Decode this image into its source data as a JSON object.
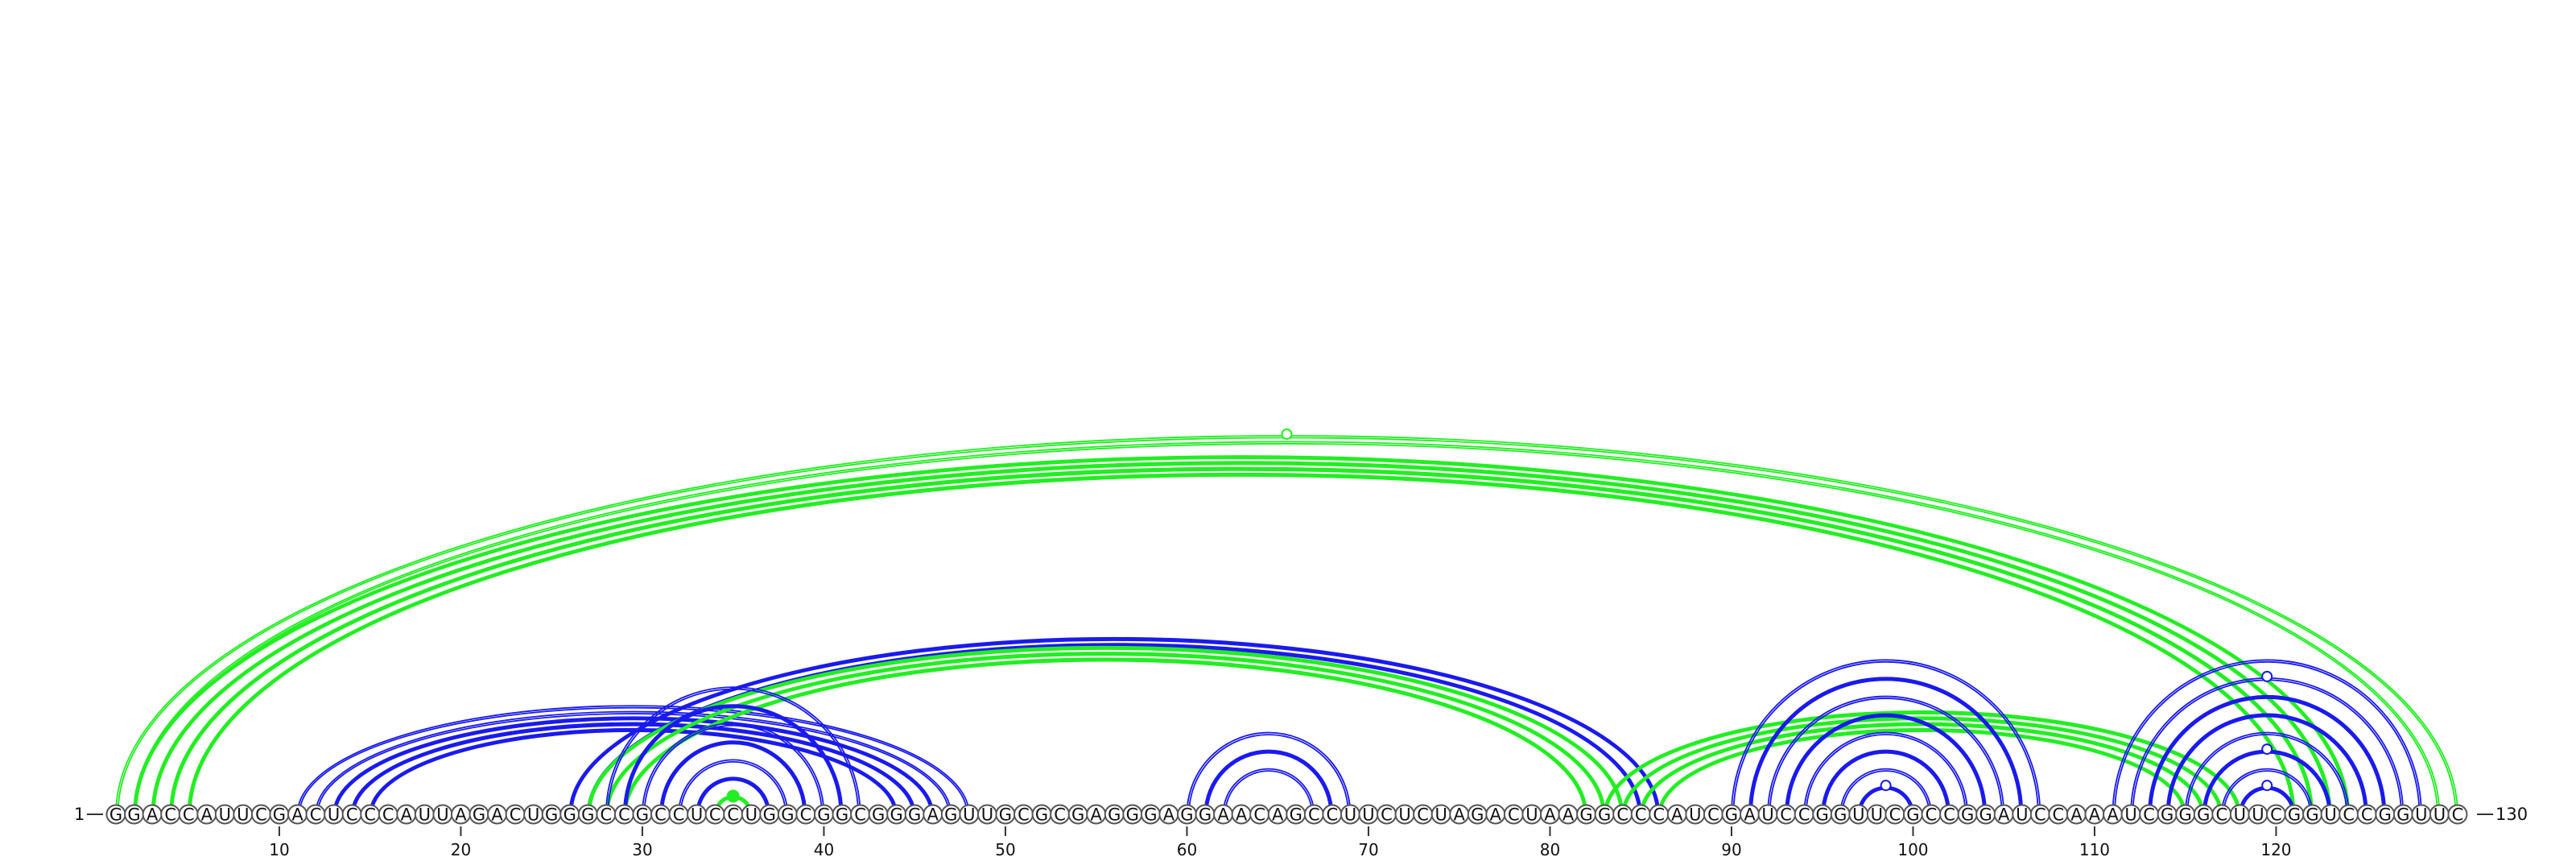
{
  "chart_data": {
    "type": "arc-diagram",
    "title": "",
    "sequence": "GGACCAUUCGACUCCCAUUAGACUGGGCCGCCUCCUGGCGGCGGGAGUUGCGCGAGGGAGGAACAGCCUUCUCUAGACUAAGGCCCAUCGAUCCGGUUCGCCGGAUCCAAAUCGGGCUUCGGUCCGGUUC",
    "start_label": "1",
    "end_label": "130",
    "ticks": [
      10,
      20,
      30,
      40,
      50,
      60,
      70,
      80,
      90,
      100,
      110,
      120
    ],
    "colors": {
      "blue": "#1a1aee",
      "green": "#22ee22"
    },
    "arcs": [
      {
        "i": 1,
        "j": 130,
        "color": "green",
        "weight": 1
      },
      {
        "i": 2,
        "j": 129,
        "color": "green",
        "weight": 1
      },
      {
        "i": 2,
        "j": 124,
        "color": "green",
        "weight": 2
      },
      {
        "i": 3,
        "j": 123,
        "color": "green",
        "weight": 2
      },
      {
        "i": 4,
        "j": 122,
        "color": "green",
        "weight": 2
      },
      {
        "i": 5,
        "j": 121,
        "color": "green",
        "weight": 2
      },
      {
        "i": 11,
        "j": 48,
        "color": "blue",
        "weight": 1
      },
      {
        "i": 12,
        "j": 47,
        "color": "blue",
        "weight": 1
      },
      {
        "i": 13,
        "j": 46,
        "color": "blue",
        "weight": 2
      },
      {
        "i": 14,
        "j": 45,
        "color": "blue",
        "weight": 2
      },
      {
        "i": 15,
        "j": 44,
        "color": "blue",
        "weight": 2
      },
      {
        "i": 26,
        "j": 86,
        "color": "blue",
        "weight": 2
      },
      {
        "i": 27,
        "j": 85,
        "color": "blue",
        "weight": 2
      },
      {
        "i": 27,
        "j": 84,
        "color": "green",
        "weight": 2
      },
      {
        "i": 28,
        "j": 83,
        "color": "green",
        "weight": 2
      },
      {
        "i": 29,
        "j": 82,
        "color": "green",
        "weight": 2
      },
      {
        "i": 28,
        "j": 42,
        "color": "blue",
        "weight": 1
      },
      {
        "i": 29,
        "j": 41,
        "color": "blue",
        "weight": 2
      },
      {
        "i": 30,
        "j": 40,
        "color": "blue",
        "weight": 1
      },
      {
        "i": 31,
        "j": 39,
        "color": "blue",
        "weight": 2
      },
      {
        "i": 32,
        "j": 38,
        "color": "blue",
        "weight": 1
      },
      {
        "i": 33,
        "j": 37,
        "color": "blue",
        "weight": 2
      },
      {
        "i": 34,
        "j": 36,
        "color": "green",
        "weight": 2
      },
      {
        "i": 60,
        "j": 69,
        "color": "blue",
        "weight": 1
      },
      {
        "i": 61,
        "j": 68,
        "color": "blue",
        "weight": 2
      },
      {
        "i": 62,
        "j": 67,
        "color": "blue",
        "weight": 1
      },
      {
        "i": 83,
        "j": 118,
        "color": "green",
        "weight": 2
      },
      {
        "i": 84,
        "j": 117,
        "color": "green",
        "weight": 2
      },
      {
        "i": 85,
        "j": 116,
        "color": "green",
        "weight": 2
      },
      {
        "i": 86,
        "j": 115,
        "color": "green",
        "weight": 2
      },
      {
        "i": 90,
        "j": 107,
        "color": "blue",
        "weight": 1
      },
      {
        "i": 91,
        "j": 106,
        "color": "blue",
        "weight": 2
      },
      {
        "i": 92,
        "j": 105,
        "color": "blue",
        "weight": 1
      },
      {
        "i": 93,
        "j": 104,
        "color": "blue",
        "weight": 2
      },
      {
        "i": 94,
        "j": 103,
        "color": "blue",
        "weight": 1
      },
      {
        "i": 95,
        "j": 102,
        "color": "blue",
        "weight": 2
      },
      {
        "i": 96,
        "j": 101,
        "color": "blue",
        "weight": 1
      },
      {
        "i": 97,
        "j": 100,
        "color": "blue",
        "weight": 2
      },
      {
        "i": 111,
        "j": 128,
        "color": "blue",
        "weight": 1
      },
      {
        "i": 112,
        "j": 127,
        "color": "blue",
        "weight": 1
      },
      {
        "i": 113,
        "j": 126,
        "color": "blue",
        "weight": 2
      },
      {
        "i": 114,
        "j": 125,
        "color": "blue",
        "weight": 2
      },
      {
        "i": 115,
        "j": 124,
        "color": "blue",
        "weight": 1
      },
      {
        "i": 116,
        "j": 123,
        "color": "blue",
        "weight": 2
      },
      {
        "i": 117,
        "j": 122,
        "color": "blue",
        "weight": 1
      },
      {
        "i": 118,
        "j": 121,
        "color": "blue",
        "weight": 2
      }
    ],
    "markers": [
      {
        "x": 65.5,
        "row": "top-arc",
        "i": 1,
        "j": 130,
        "color": "green",
        "filled": false
      },
      {
        "x": 35,
        "i": 34,
        "j": 36,
        "color": "green",
        "filled": true
      },
      {
        "x": 98.5,
        "i": 97,
        "j": 100,
        "color": "blue",
        "filled": false
      },
      {
        "x": 119.5,
        "i": 118,
        "j": 121,
        "color": "blue",
        "filled": false
      },
      {
        "x": 119.5,
        "i": 116,
        "j": 123,
        "color": "blue",
        "filled": false
      },
      {
        "x": 119.5,
        "i": 112,
        "j": 127,
        "color": "blue",
        "filled": false
      }
    ]
  }
}
